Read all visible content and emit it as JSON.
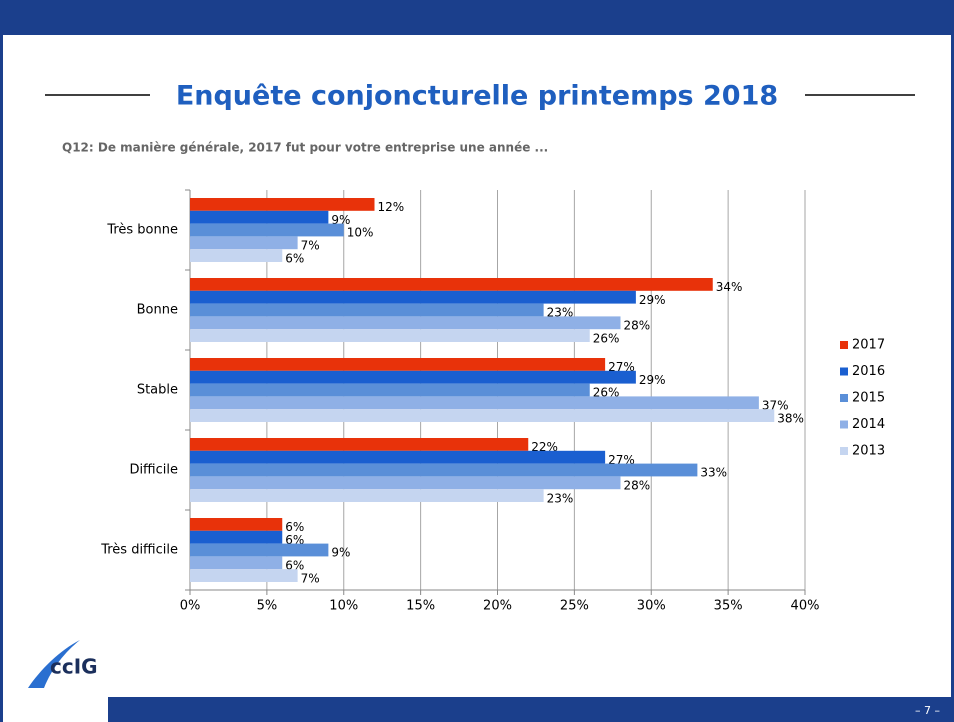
{
  "chart_data": {
    "type": "bar",
    "orientation": "horizontal",
    "title": "Enquête conjoncturelle printemps 2018",
    "subtitle": "Q12:  De manière générale, 2017 fut pour votre entreprise une année ...",
    "categories": [
      "Très bonne",
      "Bonne",
      "Stable",
      "Difficile",
      "Très difficile"
    ],
    "series": [
      {
        "name": "2017",
        "color": "#e8320a",
        "values": [
          12,
          34,
          27,
          22,
          6
        ],
        "value_labels": [
          "12%",
          "34%",
          "27%",
          "22%",
          "6%"
        ]
      },
      {
        "name": "2016",
        "color": "#1a5fd0",
        "values": [
          9,
          29,
          29,
          27,
          6
        ],
        "value_labels": [
          "9%",
          "29%",
          "29%",
          "27%",
          "6%"
        ]
      },
      {
        "name": "2015",
        "color": "#5a8fd8",
        "values": [
          10,
          23,
          26,
          33,
          9
        ],
        "value_labels": [
          "10%",
          "23%",
          "26%",
          "33%",
          "9%"
        ]
      },
      {
        "name": "2014",
        "color": "#8fb0e6",
        "values": [
          7,
          28,
          37,
          28,
          6
        ],
        "value_labels": [
          "7%",
          "28%",
          "37%",
          "28%",
          "6%"
        ]
      },
      {
        "name": "2013",
        "color": "#c5d5f0",
        "values": [
          6,
          26,
          38,
          23,
          7
        ],
        "value_labels": [
          "6%",
          "26%",
          "38%",
          "23%",
          "7%"
        ]
      }
    ],
    "xlim": [
      0,
      40
    ],
    "xticks": [
      {
        "value": 0,
        "label": "0%"
      },
      {
        "value": 5,
        "label": "5%"
      },
      {
        "value": 10,
        "label": "10%"
      },
      {
        "value": 15,
        "label": "15%"
      },
      {
        "value": 20,
        "label": "20%"
      },
      {
        "value": 25,
        "label": "25%"
      },
      {
        "value": 30,
        "label": "30%"
      },
      {
        "value": 35,
        "label": "35%"
      },
      {
        "value": 40,
        "label": "40%"
      }
    ],
    "grid": true,
    "legend": "right"
  },
  "page_number": "– 7 –",
  "logo": "ccIG"
}
